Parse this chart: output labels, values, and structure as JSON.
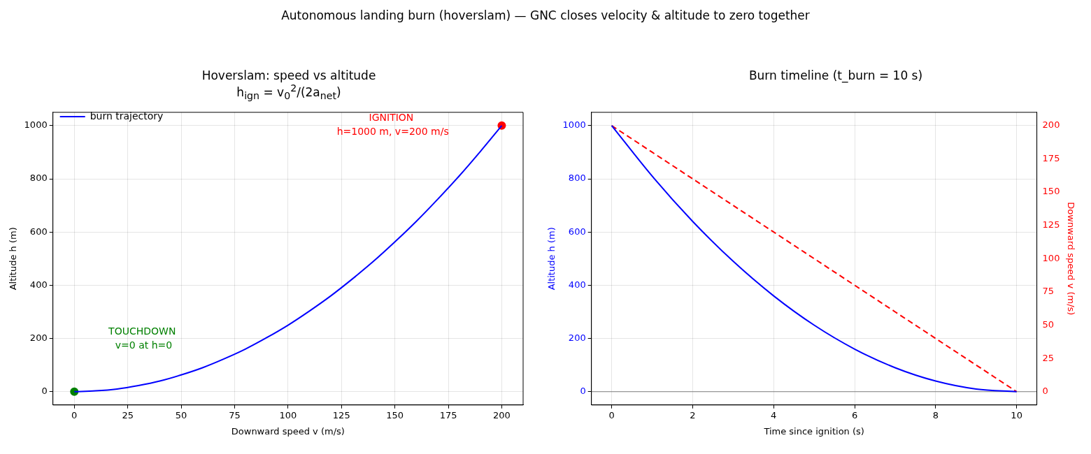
{
  "chart_data": [
    {
      "type": "line",
      "title": "Hoverslam: speed vs altitude",
      "subtitle": "h$_{ign}$ = v$_{0}$$^{2}$/(2a$_{net}$)",
      "xlabel": "Downward speed v (m/s)",
      "ylabel": "Altitude h (m)",
      "xlim": [
        -10,
        210
      ],
      "xticks": [
        0,
        25,
        50,
        75,
        100,
        125,
        150,
        175,
        200
      ],
      "ylim": [
        -50,
        1050
      ],
      "yticks": [
        0,
        200,
        400,
        600,
        800,
        1000
      ],
      "grid": true,
      "legend": "top left",
      "series": [
        {
          "name": "burn trajectory",
          "type": "line",
          "color": "#0000ff",
          "x": [
            0,
            10,
            20,
            30,
            40,
            50,
            60,
            70,
            80,
            90,
            100,
            110,
            120,
            130,
            140,
            150,
            160,
            170,
            180,
            190,
            200
          ],
          "values": [
            0,
            3,
            10,
            23,
            40,
            63,
            90,
            123,
            160,
            203,
            250,
            303,
            360,
            423,
            490,
            563,
            640,
            723,
            810,
            903,
            1000
          ]
        },
        {
          "type": "scatter",
          "color": "#008000",
          "x": [
            0
          ],
          "values": [
            0
          ]
        },
        {
          "type": "scatter",
          "color": "#ff0000",
          "x": [
            200
          ],
          "values": [
            1000
          ]
        }
      ],
      "annotations": [
        "Autonomous landing burn (hoverslam) — GNC closes velocity & altitude to zero together",
        "TOUCHDOWN\n v=0 at h=0",
        "IGNITION\n h=1000 m, v=200 m/s"
      ]
    },
    {
      "type": "line",
      "title": "Burn timeline (t_burn = 10 s)",
      "xlabel": "Time since ignition (s)",
      "ylabel": "Altitude h (m)",
      "y2label": "Downward speed v (m/s)",
      "xlim": [
        -0.5,
        10.5
      ],
      "xticks": [
        0,
        2,
        4,
        6,
        8,
        10
      ],
      "ylim": [
        -50,
        1050
      ],
      "yticks": [
        0,
        200,
        400,
        600,
        800,
        1000
      ],
      "y2lim": [
        -10,
        210
      ],
      "y2ticks": [
        0,
        25,
        50,
        75,
        100,
        125,
        150,
        175,
        200
      ],
      "grid": true,
      "x": [
        0,
        1,
        2,
        3,
        4,
        5,
        6,
        7,
        8,
        9,
        10
      ],
      "series": [
        {
          "type": "line",
          "color": "#0000ff",
          "values": [
            1000,
            810,
            640,
            490,
            360,
            250,
            160,
            90,
            40,
            10,
            0
          ]
        },
        {
          "type": "line",
          "color": "#ff0000",
          "axis": "y2",
          "line_style": "dashed",
          "values": [
            200,
            180,
            160,
            140,
            120,
            100,
            80,
            60,
            40,
            20,
            0
          ]
        }
      ],
      "ref_lines": [
        {
          "axis": "y",
          "value": 0,
          "color": "#808080"
        }
      ]
    }
  ]
}
